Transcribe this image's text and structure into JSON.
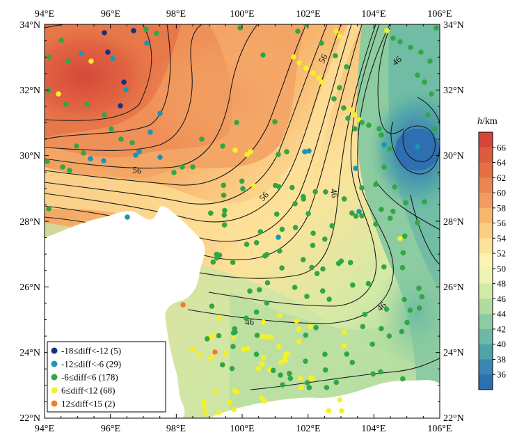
{
  "map": {
    "lon_range": [
      94,
      106
    ],
    "lat_range": [
      22,
      34
    ],
    "x_ticks": [
      "94°E",
      "96°E",
      "98°E",
      "100°E",
      "102°E",
      "104°E",
      "106°E"
    ],
    "y_ticks_left": [
      "34°N",
      "32°N",
      "30°N",
      "28°N",
      "26°N",
      "24°N",
      "22°N"
    ],
    "y_ticks_right": [
      "34°N",
      "32°N",
      "30°N",
      "28°N",
      "26°N",
      "24°N",
      "22°N"
    ],
    "contour_labels": [
      "56",
      "56",
      "56",
      "46",
      "46",
      "46",
      "46"
    ]
  },
  "colorbar": {
    "title_var": "h",
    "title_unit": "/km",
    "ticks": [
      "66",
      "64",
      "62",
      "60",
      "58",
      "56",
      "54",
      "52",
      "50",
      "48",
      "46",
      "44",
      "42",
      "40",
      "38",
      "36"
    ],
    "colors": [
      "#d6473a",
      "#dd5b3e",
      "#e46f43",
      "#eb8650",
      "#f29b60",
      "#f7b56e",
      "#fbcd80",
      "#fde29a",
      "#fcf3b3",
      "#eef4b5",
      "#d3eaa6",
      "#b1dca0",
      "#8dcca0",
      "#6dbaa4",
      "#4ea3a9",
      "#3b86b3",
      "#2d6fb1"
    ]
  },
  "legend": {
    "items": [
      {
        "label": "-18≤diff<-12 (5)",
        "color": "#17307c"
      },
      {
        "label": "-12≤diff<-6 (29)",
        "color": "#1a96b3"
      },
      {
        "label": "-6≤diff<6 (178)",
        "color": "#31a743"
      },
      {
        "label": "6≤diff<12 (68)",
        "color": "#f5f027"
      },
      {
        "label": "12≤diff<15 (2)",
        "color": "#f07f27"
      }
    ]
  }
}
